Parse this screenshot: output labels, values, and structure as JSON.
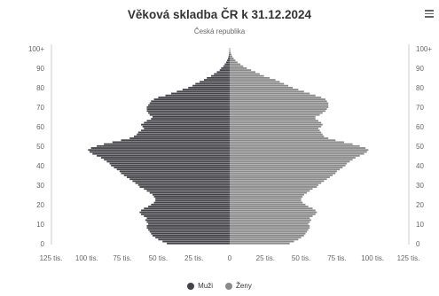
{
  "title": "Věková skladba ČR k 31.12.2024",
  "subtitle": "Česká republika",
  "colors": {
    "men": "#434348",
    "women": "#8a8a8a",
    "axis": "#666666"
  },
  "legend": {
    "men": "Muži",
    "women": "Ženy"
  },
  "menu_icon": "hamburger-menu-icon",
  "chart_data": {
    "type": "bar",
    "orientation": "horizontal-population-pyramid",
    "title": "Věková skladba ČR k 31.12.2024",
    "subtitle": "Česká republika",
    "y_ticks": [
      "0",
      "10",
      "20",
      "30",
      "40",
      "50",
      "60",
      "70",
      "80",
      "90",
      "100+"
    ],
    "x_ticks": [
      "125 tis.",
      "100 tis.",
      "75 tis.",
      "50 tis.",
      "25 tis.",
      "0",
      "25 tis.",
      "50 tis.",
      "75 tis.",
      "100 tis.",
      "125 tis."
    ],
    "xlim": [
      -125000,
      125000
    ],
    "ages": [
      0,
      1,
      2,
      3,
      4,
      5,
      6,
      7,
      8,
      9,
      10,
      11,
      12,
      13,
      14,
      15,
      16,
      17,
      18,
      19,
      20,
      21,
      22,
      23,
      24,
      25,
      26,
      27,
      28,
      29,
      30,
      31,
      32,
      33,
      34,
      35,
      36,
      37,
      38,
      39,
      40,
      41,
      42,
      43,
      44,
      45,
      46,
      47,
      48,
      49,
      50,
      51,
      52,
      53,
      54,
      55,
      56,
      57,
      58,
      59,
      60,
      61,
      62,
      63,
      64,
      65,
      66,
      67,
      68,
      69,
      70,
      71,
      72,
      73,
      74,
      75,
      76,
      77,
      78,
      79,
      80,
      81,
      82,
      83,
      84,
      85,
      86,
      87,
      88,
      89,
      90,
      91,
      92,
      93,
      94,
      95,
      96,
      97,
      98,
      99,
      100
    ],
    "series": [
      {
        "name": "Muži",
        "values": [
          44000,
          47000,
          50000,
          52000,
          54000,
          55000,
          56000,
          57000,
          58000,
          58000,
          57000,
          58000,
          59000,
          58000,
          60000,
          62000,
          63000,
          62000,
          60000,
          57000,
          55000,
          53000,
          52000,
          52000,
          53000,
          54000,
          56000,
          58000,
          60000,
          63000,
          64000,
          66000,
          68000,
          70000,
          72000,
          74000,
          76000,
          77000,
          79000,
          81000,
          83000,
          84000,
          86000,
          88000,
          90000,
          93000,
          96000,
          98000,
          99000,
          97000,
          93000,
          88000,
          82000,
          76000,
          70000,
          67000,
          65000,
          64000,
          62000,
          60000,
          61000,
          62000,
          60000,
          58000,
          55000,
          54000,
          56000,
          57000,
          58000,
          58000,
          58000,
          57000,
          56000,
          55000,
          53000,
          50000,
          45000,
          41000,
          37000,
          33000,
          29000,
          26000,
          24000,
          21000,
          18000,
          16000,
          13000,
          11000,
          9000,
          7000,
          6000,
          4500,
          3500,
          2500,
          1800,
          1200,
          800,
          500,
          300,
          200,
          150
        ]
      },
      {
        "name": "Ženy",
        "values": [
          42000,
          45000,
          48000,
          50000,
          52000,
          53000,
          54000,
          55000,
          56000,
          56000,
          55000,
          56000,
          57000,
          56000,
          58000,
          60000,
          61000,
          60000,
          58000,
          55000,
          53000,
          51000,
          50000,
          50000,
          51000,
          52000,
          54000,
          56000,
          58000,
          61000,
          62000,
          64000,
          66000,
          68000,
          70000,
          72000,
          74000,
          75000,
          77000,
          79000,
          81000,
          82000,
          84000,
          86000,
          88000,
          91000,
          94000,
          96000,
          97000,
          95000,
          91000,
          86000,
          80000,
          74000,
          69000,
          66000,
          65000,
          64000,
          63000,
          62000,
          64000,
          65000,
          64000,
          62000,
          60000,
          60000,
          63000,
          65000,
          67000,
          68000,
          69000,
          69000,
          69000,
          68000,
          67000,
          64000,
          60000,
          56000,
          52000,
          48000,
          44000,
          41000,
          38000,
          35000,
          32000,
          28000,
          24000,
          21000,
          18000,
          15000,
          12000,
          9500,
          7500,
          5500,
          4000,
          2800,
          1800,
          1200,
          700,
          400,
          300
        ]
      }
    ]
  }
}
